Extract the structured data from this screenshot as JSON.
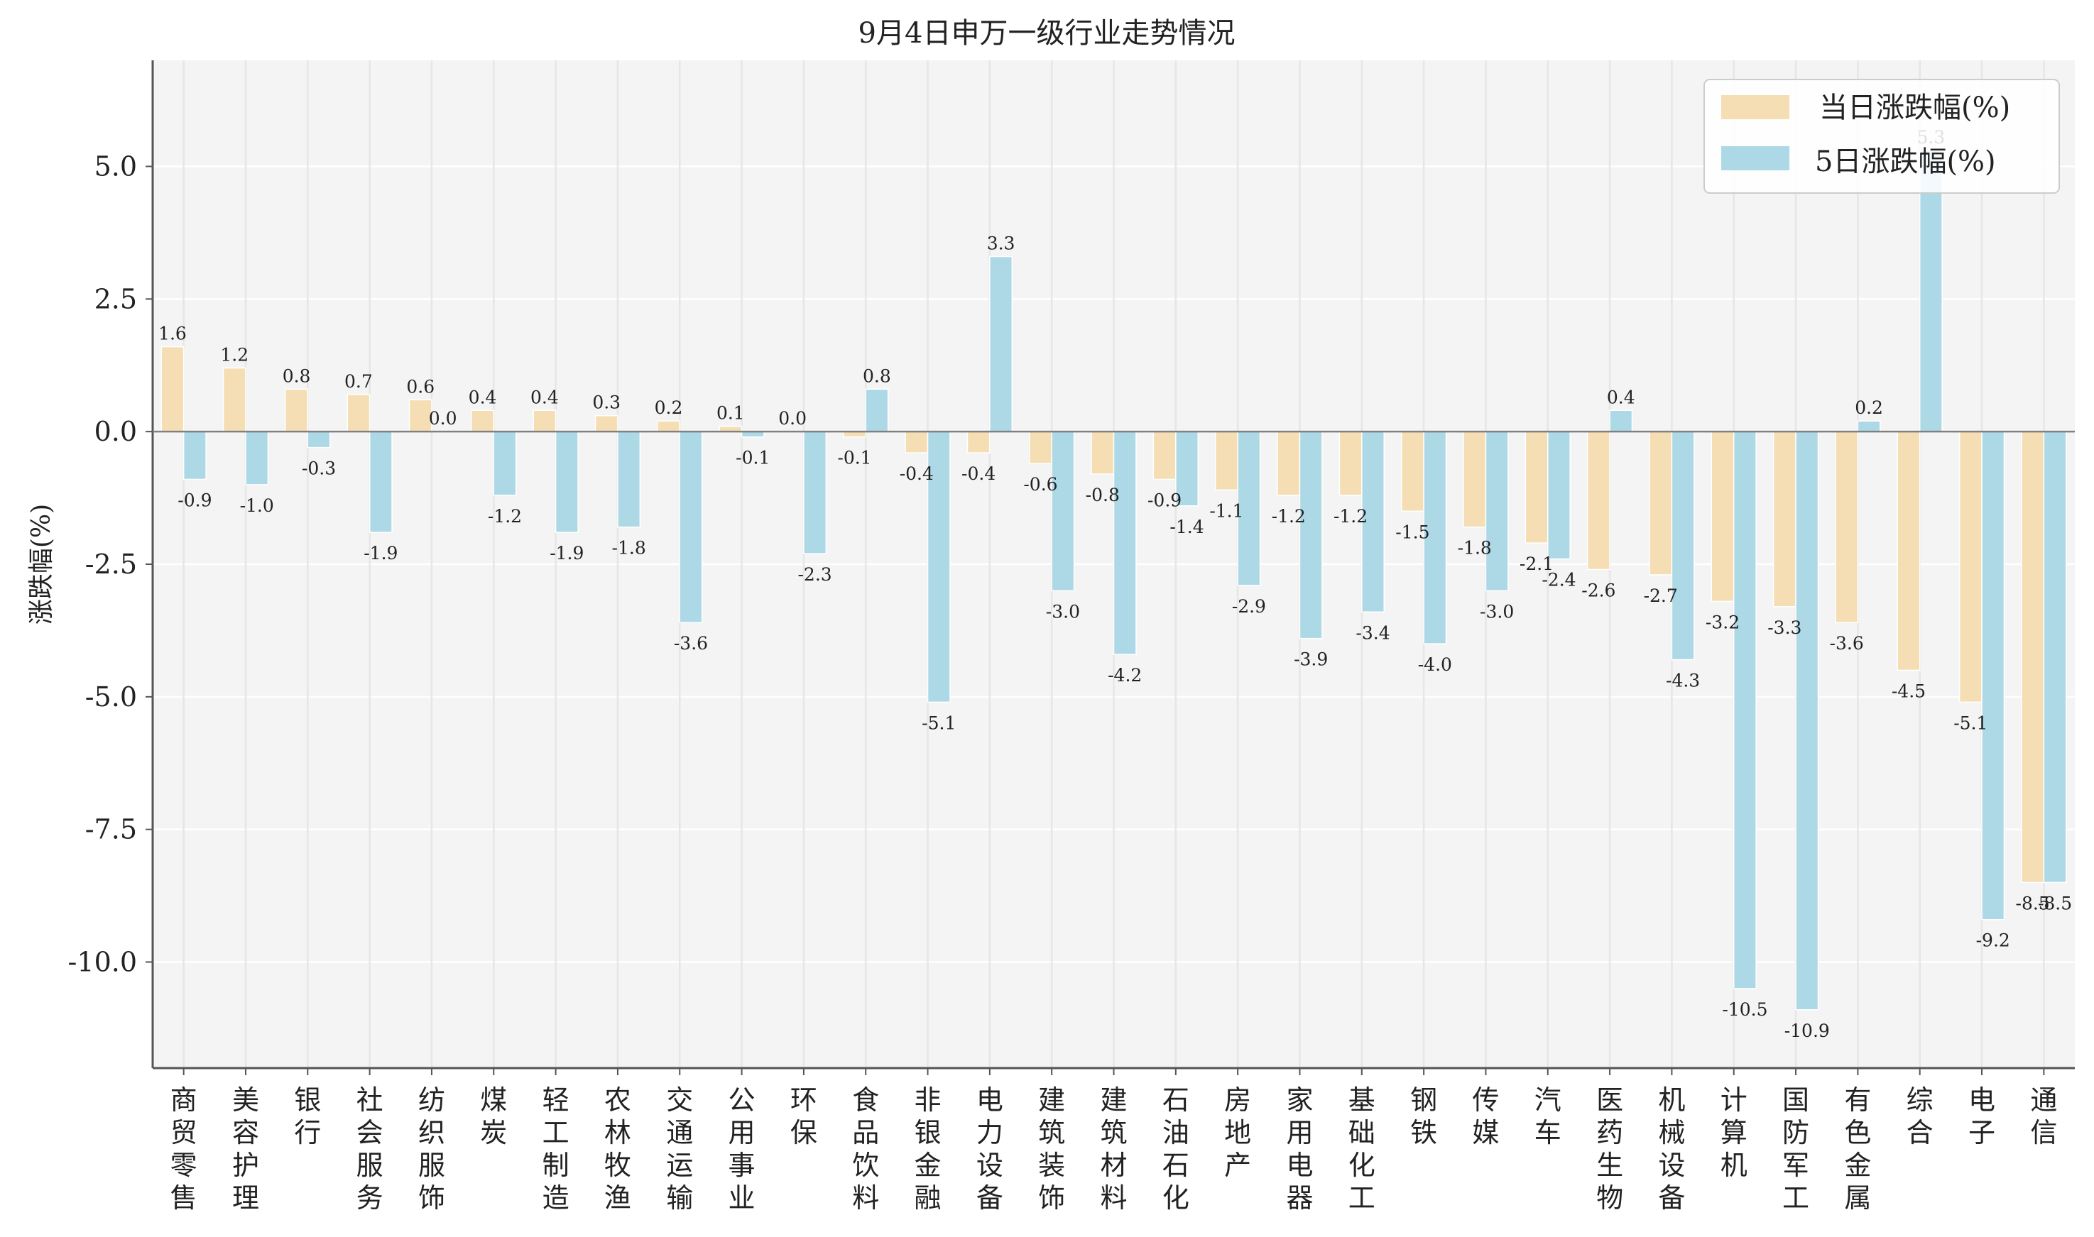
{
  "chart_data": {
    "type": "bar",
    "title": "9月4日申万一级行业走势情况",
    "ylabel": "涨跌幅(%)",
    "xlabel": "",
    "ylim": [
      -12.0,
      7.0
    ],
    "yticks": [
      5.0,
      2.5,
      0.0,
      -2.5,
      -5.0,
      -7.5,
      -10.0
    ],
    "ytick_labels": [
      "5.0",
      "2.5",
      "0.0",
      "-2.5",
      "-5.0",
      "-7.5",
      "-10.0"
    ],
    "grid": true,
    "legend_position": "top-right",
    "categories": [
      "商贸零售",
      "美容护理",
      "银行",
      "社会服务",
      "纺织服饰",
      "煤炭",
      "轻工制造",
      "农林牧渔",
      "交通运输",
      "公用事业",
      "环保",
      "食品饮料",
      "非银金融",
      "电力设备",
      "建筑装饰",
      "建筑材料",
      "石油石化",
      "房地产",
      "家用电器",
      "基础化工",
      "钢铁",
      "传媒",
      "汽车",
      "医药生物",
      "机械设备",
      "计算机",
      "国防军工",
      "有色金属",
      "综合",
      "电子",
      "通信"
    ],
    "series": [
      {
        "name": "当日涨跌幅(%)",
        "color": "#f5deb3",
        "values": [
          1.6,
          1.2,
          0.8,
          0.7,
          0.6,
          0.4,
          0.4,
          0.3,
          0.2,
          0.1,
          0.0,
          -0.1,
          -0.4,
          -0.4,
          -0.6,
          -0.8,
          -0.9,
          -1.1,
          -1.2,
          -1.2,
          -1.5,
          -1.8,
          -2.1,
          -2.6,
          -2.7,
          -3.2,
          -3.3,
          -3.6,
          -4.5,
          -5.1,
          -8.5
        ],
        "labels": [
          "1.6",
          "1.2",
          "0.8",
          "0.7",
          "0.6",
          "0.4",
          "0.4",
          "0.3",
          "0.2",
          "0.1",
          "0.0",
          "-0.1",
          "-0.4",
          "-0.4",
          "-0.6",
          "-0.8",
          "-0.9",
          "-1.1",
          "-1.2",
          "-1.2",
          "-1.5",
          "-1.8",
          "-2.1",
          "-2.6",
          "-2.7",
          "-3.2",
          "-3.3",
          "-3.6",
          "-4.5",
          "-5.1",
          "-8.5"
        ]
      },
      {
        "name": "5日涨跌幅(%)",
        "color": "#add8e6",
        "values": [
          -0.9,
          -1.0,
          -0.3,
          -1.9,
          0.0,
          -1.2,
          -1.9,
          -1.8,
          -3.6,
          -0.1,
          -2.3,
          0.8,
          -5.1,
          3.3,
          -3.0,
          -4.2,
          -1.4,
          -2.9,
          -3.9,
          -3.4,
          -4.0,
          -3.0,
          -2.4,
          0.4,
          -4.3,
          -10.5,
          -10.9,
          0.2,
          5.3,
          -9.2,
          -8.5
        ],
        "labels": [
          "-0.9",
          "-1.0",
          "-0.3",
          "-1.9",
          "0.0",
          "-1.2",
          "-1.9",
          "-1.8",
          "-3.6",
          "-0.1",
          "-2.3",
          "0.8",
          "-5.1",
          "3.3",
          "-3.0",
          "-4.2",
          "-1.4",
          "-2.9",
          "-3.9",
          "-3.4",
          "-4.0",
          "-3.0",
          "-2.4",
          "0.4",
          "-4.3",
          "-10.5",
          "-10.9",
          "0.2",
          "5.3",
          "-9.2",
          "-8.5"
        ]
      }
    ]
  },
  "colors": {
    "plot_background": "#f4f4f4",
    "grid": "#ffffff",
    "axis": "#555555",
    "zero_line": "#808080"
  }
}
